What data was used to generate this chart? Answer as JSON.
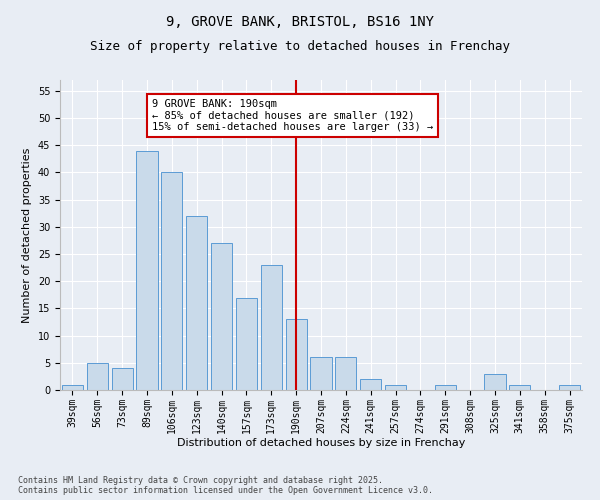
{
  "title1": "9, GROVE BANK, BRISTOL, BS16 1NY",
  "title2": "Size of property relative to detached houses in Frenchay",
  "xlabel": "Distribution of detached houses by size in Frenchay",
  "ylabel": "Number of detached properties",
  "categories": [
    "39sqm",
    "56sqm",
    "73sqm",
    "89sqm",
    "106sqm",
    "123sqm",
    "140sqm",
    "157sqm",
    "173sqm",
    "190sqm",
    "207sqm",
    "224sqm",
    "241sqm",
    "257sqm",
    "274sqm",
    "291sqm",
    "308sqm",
    "325sqm",
    "341sqm",
    "358sqm",
    "375sqm"
  ],
  "values": [
    1,
    5,
    4,
    44,
    40,
    32,
    27,
    17,
    23,
    13,
    6,
    6,
    2,
    1,
    0,
    1,
    0,
    3,
    1,
    0,
    1
  ],
  "bar_color": "#c9daea",
  "bar_edge_color": "#5b9bd5",
  "highlight_index": 9,
  "red_line_color": "#cc0000",
  "annotation_title": "9 GROVE BANK: 190sqm",
  "annotation_line1": "← 85% of detached houses are smaller (192)",
  "annotation_line2": "15% of semi-detached houses are larger (33) →",
  "ylim": [
    0,
    57
  ],
  "yticks": [
    0,
    5,
    10,
    15,
    20,
    25,
    30,
    35,
    40,
    45,
    50,
    55
  ],
  "background_color": "#e8edf4",
  "plot_background": "#e8edf4",
  "footer": "Contains HM Land Registry data © Crown copyright and database right 2025.\nContains public sector information licensed under the Open Government Licence v3.0.",
  "title_fontsize": 10,
  "subtitle_fontsize": 9,
  "axis_label_fontsize": 8,
  "tick_fontsize": 7,
  "annotation_fontsize": 7.5,
  "footer_fontsize": 6
}
